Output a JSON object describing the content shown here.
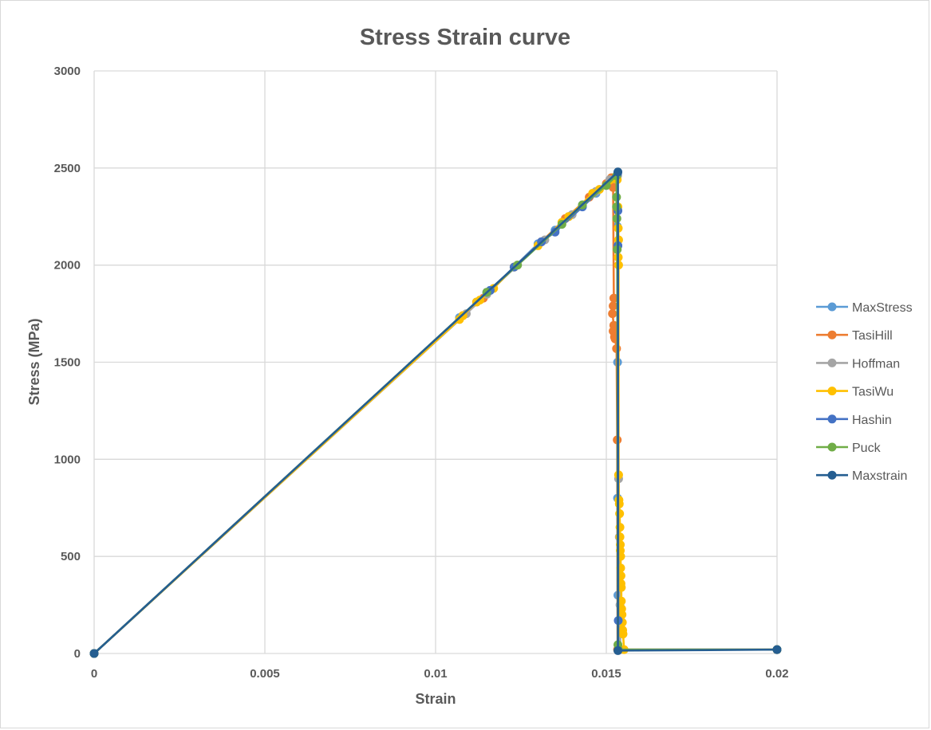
{
  "chart_data": {
    "type": "scatter",
    "title": "Stress Strain curve",
    "xlabel": "Strain",
    "ylabel": "Stress (MPa)",
    "xlim": [
      0,
      0.02
    ],
    "ylim": [
      0,
      3000
    ],
    "xticks": [
      "0",
      "0.005",
      "0.01",
      "0.015",
      "0.02"
    ],
    "xtick_values": [
      0,
      0.005,
      0.01,
      0.015,
      0.02
    ],
    "yticks": [
      "0",
      "500",
      "1000",
      "1500",
      "2000",
      "2500",
      "3000"
    ],
    "ytick_values": [
      0,
      500,
      1000,
      1500,
      2000,
      2500,
      3000
    ],
    "grid": true,
    "legend_position": "right",
    "series": [
      {
        "name": "MaxStress",
        "color": "#5b9bd5",
        "points": [
          [
            0,
            0
          ],
          [
            0.0107,
            1730
          ],
          [
            0.0112,
            1810
          ],
          [
            0.0116,
            1870
          ],
          [
            0.0123,
            1990
          ],
          [
            0.013,
            2110
          ],
          [
            0.0135,
            2180
          ],
          [
            0.0139,
            2250
          ],
          [
            0.0143,
            2310
          ],
          [
            0.0147,
            2370
          ],
          [
            0.015,
            2410
          ],
          [
            0.01525,
            2450
          ],
          [
            0.0153,
            2440
          ],
          [
            0.01532,
            2200
          ],
          [
            0.01533,
            1500
          ],
          [
            0.01533,
            800
          ],
          [
            0.01534,
            300
          ],
          [
            0.01534,
            20
          ],
          [
            0.02,
            20
          ]
        ]
      },
      {
        "name": "TasiHill",
        "color": "#ed7d31",
        "points": [
          [
            0,
            0
          ],
          [
            0.0108,
            1740
          ],
          [
            0.0114,
            1830
          ],
          [
            0.0123,
            1990
          ],
          [
            0.0131,
            2120
          ],
          [
            0.0138,
            2240
          ],
          [
            0.0145,
            2350
          ],
          [
            0.015,
            2420
          ],
          [
            0.01515,
            2450
          ],
          [
            0.0152,
            2400
          ],
          [
            0.01522,
            1830
          ],
          [
            0.0152,
            1790
          ],
          [
            0.01518,
            1750
          ],
          [
            0.01522,
            1690
          ],
          [
            0.0152,
            1660
          ],
          [
            0.01524,
            1630
          ],
          [
            0.01526,
            1620
          ],
          [
            0.0153,
            1570
          ],
          [
            0.01532,
            1100
          ],
          [
            0.01533,
            20
          ],
          [
            0.02,
            20
          ]
        ]
      },
      {
        "name": "Hoffman",
        "color": "#a5a5a5",
        "points": [
          [
            0,
            0
          ],
          [
            0.0109,
            1750
          ],
          [
            0.0115,
            1850
          ],
          [
            0.0124,
            2000
          ],
          [
            0.0132,
            2130
          ],
          [
            0.014,
            2260
          ],
          [
            0.0147,
            2380
          ],
          [
            0.0151,
            2440
          ],
          [
            0.01533,
            2460
          ],
          [
            0.01534,
            2100
          ],
          [
            0.01536,
            900
          ],
          [
            0.01538,
            600
          ],
          [
            0.0154,
            250
          ],
          [
            0.01541,
            20
          ],
          [
            0.02,
            20
          ]
        ]
      },
      {
        "name": "TasiWu",
        "color": "#ffc000",
        "points": [
          [
            0,
            0
          ],
          [
            0.0107,
            1720
          ],
          [
            0.0108,
            1740
          ],
          [
            0.0112,
            1810
          ],
          [
            0.0113,
            1820
          ],
          [
            0.0117,
            1880
          ],
          [
            0.0123,
            1990
          ],
          [
            0.013,
            2100
          ],
          [
            0.0137,
            2220
          ],
          [
            0.0139,
            2250
          ],
          [
            0.0146,
            2370
          ],
          [
            0.0148,
            2390
          ],
          [
            0.01532,
            2440
          ],
          [
            0.01534,
            2300
          ],
          [
            0.01535,
            2190
          ],
          [
            0.01536,
            2130
          ],
          [
            0.01535,
            2040
          ],
          [
            0.01536,
            2000
          ],
          [
            0.01536,
            920
          ],
          [
            0.01537,
            790
          ],
          [
            0.01538,
            770
          ],
          [
            0.01539,
            720
          ],
          [
            0.0154,
            650
          ],
          [
            0.0154,
            600
          ],
          [
            0.01541,
            560
          ],
          [
            0.01541,
            530
          ],
          [
            0.01542,
            500
          ],
          [
            0.01542,
            440
          ],
          [
            0.01543,
            400
          ],
          [
            0.01543,
            360
          ],
          [
            0.01544,
            340
          ],
          [
            0.01544,
            270
          ],
          [
            0.01545,
            230
          ],
          [
            0.01546,
            200
          ],
          [
            0.01547,
            160
          ],
          [
            0.01548,
            120
          ],
          [
            0.01549,
            100
          ],
          [
            0.01552,
            20
          ],
          [
            0.02,
            20
          ]
        ]
      },
      {
        "name": "Hashin",
        "color": "#4472c4",
        "points": [
          [
            0,
            0
          ],
          [
            0.0115,
            1860
          ],
          [
            0.0116,
            1870
          ],
          [
            0.0123,
            1990
          ],
          [
            0.0131,
            2120
          ],
          [
            0.0135,
            2170
          ],
          [
            0.0143,
            2300
          ],
          [
            0.01533,
            2470
          ],
          [
            0.01534,
            2280
          ],
          [
            0.01534,
            2100
          ],
          [
            0.01535,
            170
          ],
          [
            0.01535,
            20
          ],
          [
            0.02,
            20
          ]
        ]
      },
      {
        "name": "Puck",
        "color": "#70ad47",
        "points": [
          [
            0,
            0
          ],
          [
            0.0115,
            1860
          ],
          [
            0.0124,
            2000
          ],
          [
            0.0137,
            2210
          ],
          [
            0.0143,
            2310
          ],
          [
            0.015,
            2410
          ],
          [
            0.0153,
            2460
          ],
          [
            0.0153,
            2350
          ],
          [
            0.0153,
            2300
          ],
          [
            0.01531,
            2240
          ],
          [
            0.01532,
            2080
          ],
          [
            0.01534,
            45
          ],
          [
            0.01535,
            20
          ],
          [
            0.02,
            20
          ]
        ]
      },
      {
        "name": "Maxstrain",
        "color": "#255e91",
        "points": [
          [
            0,
            0
          ],
          [
            0.01534,
            2480
          ],
          [
            0.01534,
            15
          ],
          [
            0.02,
            20
          ]
        ]
      }
    ]
  }
}
